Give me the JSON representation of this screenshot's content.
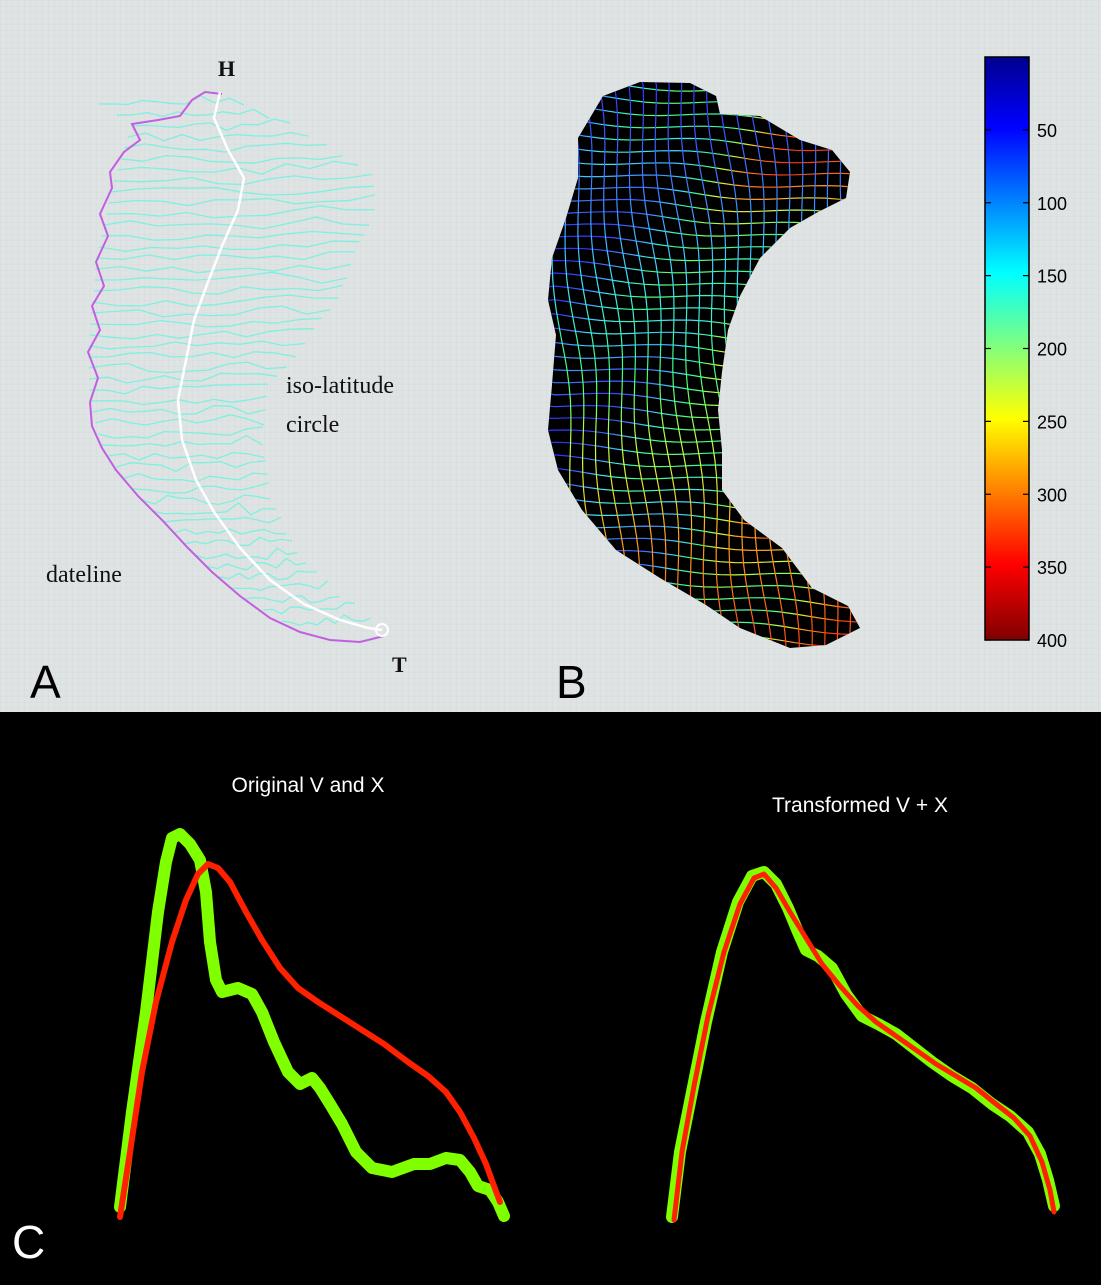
{
  "panel_a": {
    "letter": "A",
    "head_label": "H",
    "tail_label": "T",
    "label_iso_line1": "iso-latitude",
    "label_iso_line2": "circle",
    "label_dateline": "dateline",
    "colors": {
      "contour": "#7ff0e0",
      "dateline": "#c060e0",
      "centerline": "#ffffff"
    }
  },
  "panel_b": {
    "letter": "B",
    "colorbar_ticks": [
      "50",
      "100",
      "150",
      "200",
      "250",
      "300",
      "350",
      "400"
    ],
    "colorbar_range": [
      0,
      400
    ],
    "colormap": [
      "#00008f",
      "#0000ff",
      "#00ffff",
      "#ffff00",
      "#ff0000",
      "#800000"
    ]
  },
  "panel_c": {
    "letter": "C",
    "plots": [
      {
        "title": "Original V and X"
      },
      {
        "title": "Transformed V + X"
      }
    ],
    "colors": {
      "v_curve": "#7fff00",
      "x_curve": "#ff2000"
    }
  }
}
